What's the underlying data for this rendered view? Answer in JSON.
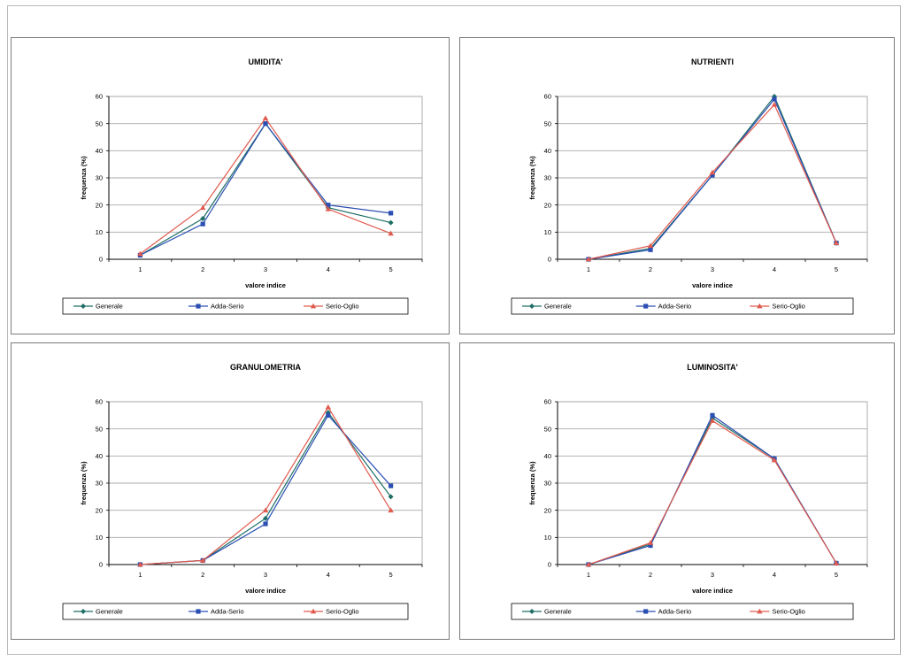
{
  "colors": {
    "generale": "#1f6f66",
    "adda_serio": "#2b4fb3",
    "serio_oglio": "#e05a4e",
    "grid": "#a8a8a8",
    "axis": "#000000",
    "plot_bg": "#ffffff",
    "plot_border": "#9a9a9a"
  },
  "chart_data": [
    {
      "type": "line",
      "title": "UMIDITA'",
      "xlabel": "valore indice",
      "ylabel": "frequenza (%)",
      "x": [
        1,
        2,
        3,
        4,
        5
      ],
      "ylim": [
        0,
        60
      ],
      "yticks": [
        0,
        10,
        20,
        30,
        40,
        50,
        60
      ],
      "grid": true,
      "legend_position": "bottom",
      "series": [
        {
          "name": "Generale",
          "values": [
            1.5,
            15,
            50,
            19,
            13.5
          ]
        },
        {
          "name": "Adda-Serio",
          "values": [
            1.5,
            13,
            50,
            20,
            17
          ]
        },
        {
          "name": "Serio-Oglio",
          "values": [
            2,
            19,
            52,
            18.5,
            9.5
          ]
        }
      ]
    },
    {
      "type": "line",
      "title": "NUTRIENTI",
      "xlabel": "valore indice",
      "ylabel": "frequenza (%)",
      "x": [
        1,
        2,
        3,
        4,
        5
      ],
      "ylim": [
        0,
        60
      ],
      "yticks": [
        0,
        10,
        20,
        30,
        40,
        50,
        60
      ],
      "grid": true,
      "legend_position": "bottom",
      "series": [
        {
          "name": "Generale",
          "values": [
            0,
            4,
            31,
            60,
            6
          ]
        },
        {
          "name": "Adda-Serio",
          "values": [
            0,
            3.5,
            31,
            59,
            6
          ]
        },
        {
          "name": "Serio-Oglio",
          "values": [
            0,
            5,
            32,
            57,
            6
          ]
        }
      ]
    },
    {
      "type": "line",
      "title": "GRANULOMETRIA",
      "xlabel": "valore indice",
      "ylabel": "frequenza (%)",
      "x": [
        1,
        2,
        3,
        4,
        5
      ],
      "ylim": [
        0,
        60
      ],
      "yticks": [
        0,
        10,
        20,
        30,
        40,
        50,
        60
      ],
      "grid": true,
      "legend_position": "bottom",
      "series": [
        {
          "name": "Generale",
          "values": [
            0,
            1.5,
            17,
            56,
            25
          ]
        },
        {
          "name": "Adda-Serio",
          "values": [
            0,
            1.5,
            15,
            55,
            29
          ]
        },
        {
          "name": "Serio-Oglio",
          "values": [
            0,
            1.5,
            20,
            58,
            20
          ]
        }
      ]
    },
    {
      "type": "line",
      "title": "LUMINOSITA'",
      "xlabel": "valore indice",
      "ylabel": "frequenza (%)",
      "x": [
        1,
        2,
        3,
        4,
        5
      ],
      "ylim": [
        0,
        60
      ],
      "yticks": [
        0,
        10,
        20,
        30,
        40,
        50,
        60
      ],
      "grid": true,
      "legend_position": "bottom",
      "series": [
        {
          "name": "Generale",
          "values": [
            0,
            7.5,
            54,
            39,
            0.5
          ]
        },
        {
          "name": "Adda-Serio",
          "values": [
            0,
            7,
            55,
            39,
            0.5
          ]
        },
        {
          "name": "Serio-Oglio",
          "values": [
            0,
            8,
            53,
            38.5,
            0.5
          ]
        }
      ]
    }
  ]
}
